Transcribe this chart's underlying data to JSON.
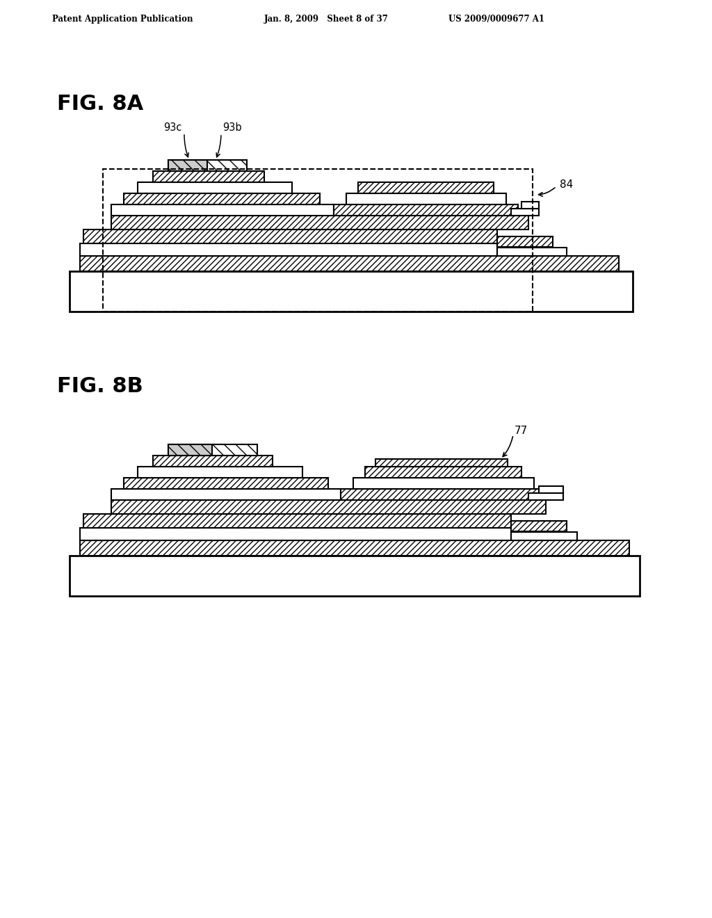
{
  "header_left": "Patent Application Publication",
  "header_mid": "Jan. 8, 2009   Sheet 8 of 37",
  "header_right": "US 2009/0009677 A1",
  "fig_a_label": "FIG. 8A",
  "fig_b_label": "FIG. 8B",
  "label_84": "84",
  "label_93c": "93c",
  "label_93b": "93b",
  "label_77": "77",
  "bg_color": "#ffffff"
}
